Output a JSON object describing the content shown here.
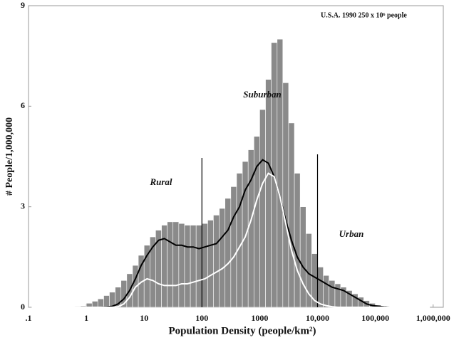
{
  "chart_data": {
    "type": "histogram",
    "subtitle": "U.S.A.  1990  250 x 10⁶ people",
    "x_label": "Population Density (people/km²)",
    "y_label": "# People/1,000,000",
    "annotations": [
      "Rural",
      "Suburban",
      "Urban"
    ],
    "boundaries": [
      100,
      10000
    ],
    "log_x": true,
    "xlim": [
      0.1,
      1500000
    ],
    "ylim": [
      0,
      9
    ],
    "xticks": [
      {
        "value": 0.1,
        "label": ".1"
      },
      1,
      10,
      100,
      1000,
      {
        "value": 10000,
        "label": "10,000"
      },
      {
        "value": 100000,
        "label": "100,000"
      },
      {
        "value": 1000000,
        "label": "1,000,000"
      }
    ],
    "yticks": [
      0,
      3,
      6,
      9
    ],
    "color": "#8a8a8a",
    "bins": [
      0.1,
      0.126,
      0.158,
      0.2,
      0.251,
      0.316,
      0.398,
      0.501,
      0.631,
      0.794,
      1,
      1.26,
      1.58,
      2,
      2.51,
      3.16,
      3.98,
      5.01,
      6.31,
      7.94,
      10,
      12.6,
      15.8,
      20,
      25.1,
      31.6,
      39.8,
      50.1,
      63.1,
      79.4,
      100,
      126,
      158,
      200,
      251,
      316,
      398,
      501,
      631,
      794,
      1000,
      1260,
      1580,
      2000,
      2510,
      3160,
      3980,
      5010,
      6310,
      7940,
      10000,
      12600,
      15800,
      20000,
      25100,
      31600,
      39800,
      50100,
      63100,
      79400,
      100000,
      126000,
      158000,
      200000,
      251000,
      316000,
      398000,
      501000,
      631000,
      794000,
      1000000
    ],
    "values": [
      0,
      0,
      0,
      0,
      0,
      0.01,
      0.01,
      0.02,
      0.03,
      0.04,
      0.12,
      0.18,
      0.25,
      0.35,
      0.45,
      0.6,
      0.8,
      1.0,
      1.25,
      1.55,
      1.85,
      2.1,
      2.3,
      2.45,
      2.55,
      2.55,
      2.5,
      2.45,
      2.45,
      2.45,
      2.5,
      2.6,
      2.75,
      2.95,
      3.25,
      3.6,
      4.0,
      4.35,
      4.7,
      5.1,
      5.9,
      6.8,
      7.9,
      8.0,
      6.7,
      5.5,
      4.0,
      3.0,
      2.2,
      1.6,
      1.2,
      0.95,
      0.8,
      0.7,
      0.6,
      0.5,
      0.4,
      0.3,
      0.2,
      0.12,
      0.07,
      0.04,
      0.02,
      0.01,
      0.01,
      0,
      0,
      0,
      0,
      0
    ],
    "lines": [
      {
        "color": "#000000",
        "values": [
          0,
          0,
          0,
          0,
          0,
          0,
          0,
          0,
          0,
          0,
          0,
          0,
          0,
          0.01,
          0.03,
          0.1,
          0.25,
          0.5,
          0.85,
          1.25,
          1.55,
          1.8,
          2.0,
          2.05,
          1.95,
          1.85,
          1.85,
          1.8,
          1.8,
          1.75,
          1.8,
          1.85,
          1.9,
          2.1,
          2.3,
          2.7,
          3.0,
          3.5,
          3.8,
          4.2,
          4.4,
          4.3,
          3.9,
          3.3,
          2.6,
          2.0,
          1.5,
          1.2,
          1.0,
          0.9,
          0.8,
          0.7,
          0.6,
          0.55,
          0.5,
          0.4,
          0.3,
          0.2,
          0.1,
          0.05,
          0.03,
          0.01,
          0,
          0,
          0,
          0,
          0,
          0,
          0,
          0
        ]
      },
      {
        "color": "#ffffff",
        "values": [
          0,
          0,
          0,
          0,
          0,
          0,
          0,
          0,
          0,
          0,
          0,
          0,
          0,
          0,
          0,
          0.02,
          0.1,
          0.3,
          0.6,
          0.75,
          0.85,
          0.8,
          0.7,
          0.65,
          0.65,
          0.65,
          0.7,
          0.7,
          0.75,
          0.8,
          0.85,
          0.95,
          1.05,
          1.15,
          1.3,
          1.5,
          1.8,
          2.1,
          2.6,
          3.2,
          3.7,
          4.0,
          3.9,
          3.3,
          2.5,
          1.7,
          1.1,
          0.7,
          0.4,
          0.2,
          0.1,
          0.05,
          0.02,
          0,
          0,
          0,
          0,
          0,
          0,
          0,
          0,
          0,
          0,
          0,
          0,
          0,
          0,
          0,
          0,
          0
        ]
      }
    ]
  }
}
